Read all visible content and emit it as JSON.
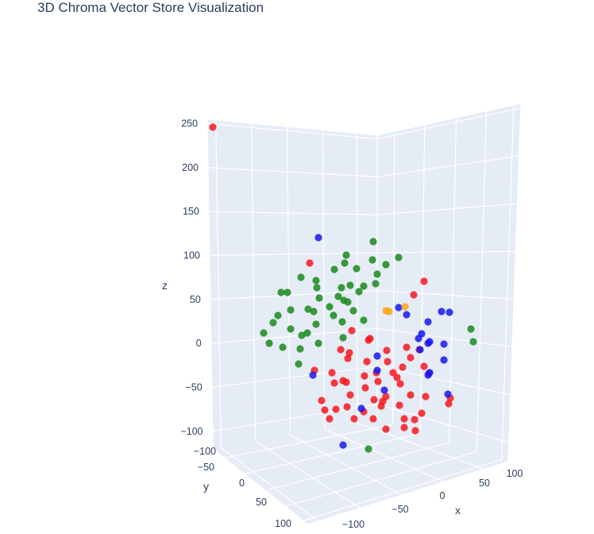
{
  "title": "3D Chroma Vector Store Visualization",
  "chart_data": {
    "type": "scatter",
    "title": "3D Chroma Vector Store Visualization",
    "axes": {
      "x": {
        "label": "x",
        "ticks": [
          "−100",
          "−50",
          "0",
          "50",
          "100"
        ]
      },
      "y": {
        "label": "y",
        "ticks": [
          "−100",
          "−50",
          "0",
          "50",
          "100"
        ]
      },
      "z": {
        "label": "z",
        "ticks": [
          "−100",
          "−50",
          "0",
          "50",
          "100",
          "150",
          "200",
          "250"
        ],
        "range": [
          -120,
          255
        ]
      }
    },
    "background": "#e5ecf6",
    "colors": {
      "red": "#f8171f",
      "green": "#1a8a1a",
      "blue": "#1818f0",
      "orange": "#ffa514"
    },
    "marker_opacity": 0.85,
    "series": [
      {
        "color": "red",
        "points": [
          [
            268,
            160
          ],
          [
            390,
            331
          ],
          [
            534,
            354
          ],
          [
            521,
            371
          ],
          [
            443,
            416
          ],
          [
            466,
            426
          ],
          [
            429,
            440
          ],
          [
            464,
            428
          ],
          [
            440,
            444
          ],
          [
            512,
            437
          ],
          [
            487,
            441
          ],
          [
            528,
            440
          ],
          [
            517,
            450
          ],
          [
            462,
            455
          ],
          [
            488,
            455
          ],
          [
            438,
            451
          ],
          [
            507,
            462
          ],
          [
            534,
            461
          ],
          [
            396,
            466
          ],
          [
            418,
            469
          ],
          [
            474,
            469
          ],
          [
            495,
            469
          ],
          [
            500,
            475
          ],
          [
            459,
            473
          ],
          [
            432,
            479
          ],
          [
            436,
            481
          ],
          [
            421,
            482
          ],
          [
            476,
            480
          ],
          [
            540,
            470
          ],
          [
            460,
            488
          ],
          [
            504,
            483
          ],
          [
            517,
            497
          ],
          [
            536,
            499
          ],
          [
            567,
            501
          ],
          [
            405,
            504
          ],
          [
            441,
            497
          ],
          [
            486,
            499
          ],
          [
            471,
            503
          ],
          [
            482,
            505
          ],
          [
            565,
            508
          ],
          [
            480,
            511
          ],
          [
            437,
            512
          ],
          [
            503,
            510
          ],
          [
            409,
            516
          ],
          [
            423,
            515
          ],
          [
            458,
            518
          ],
          [
            531,
            520
          ],
          [
            415,
            527
          ],
          [
            446,
            527
          ],
          [
            470,
            527
          ],
          [
            509,
            527
          ],
          [
            522,
            528
          ],
          [
            486,
            540
          ],
          [
            509,
            538
          ],
          [
            523,
            542
          ]
        ]
      },
      {
        "color": "green",
        "points": [
          [
            470,
            304
          ],
          [
            502,
            324
          ],
          [
            436,
            321
          ],
          [
            469,
            327
          ],
          [
            486,
            333
          ],
          [
            434,
            331
          ],
          [
            449,
            338
          ],
          [
            421,
            339
          ],
          [
            475,
            345
          ],
          [
            379,
            349
          ],
          [
            398,
            353
          ],
          [
            354,
            368
          ],
          [
            362,
            368
          ],
          [
            441,
            359
          ],
          [
            399,
            362
          ],
          [
            458,
            360
          ],
          [
            430,
            362
          ],
          [
            473,
            357
          ],
          [
            426,
            373
          ],
          [
            452,
            367
          ],
          [
            402,
            375
          ],
          [
            433,
            378
          ],
          [
            438,
            380
          ],
          [
            388,
            389
          ],
          [
            366,
            390
          ],
          [
            415,
            386
          ],
          [
            445,
            391
          ],
          [
            350,
            397
          ],
          [
            395,
            392
          ],
          [
            420,
            397
          ],
          [
            344,
            406
          ],
          [
            431,
            405
          ],
          [
            458,
            403
          ],
          [
            366,
            414
          ],
          [
            398,
            408
          ],
          [
            332,
            419
          ],
          [
            387,
            419
          ],
          [
            380,
            422
          ],
          [
            432,
            425
          ],
          [
            339,
            432
          ],
          [
            401,
            432
          ],
          [
            356,
            437
          ],
          [
            378,
            439
          ],
          [
            593,
            414
          ],
          [
            596,
            430
          ],
          [
            376,
            458
          ],
          [
            464,
            565
          ]
        ]
      },
      {
        "color": "blue",
        "points": [
          [
            401,
            299
          ],
          [
            502,
            387
          ],
          [
            512,
            396
          ],
          [
            556,
            392
          ],
          [
            566,
            393
          ],
          [
            539,
            405
          ],
          [
            531,
            420
          ],
          [
            527,
            426
          ],
          [
            539,
            432
          ],
          [
            541,
            430
          ],
          [
            559,
            433
          ],
          [
            529,
            440
          ],
          [
            475,
            448
          ],
          [
            559,
            453
          ],
          [
            475,
            466
          ],
          [
            541,
            469
          ],
          [
            539,
            472
          ],
          [
            394,
            472
          ],
          [
            484,
            491
          ],
          [
            564,
            496
          ],
          [
            455,
            514
          ],
          [
            432,
            560
          ]
        ]
      },
      {
        "color": "orange",
        "points": [
          [
            486,
            391
          ],
          [
            490,
            392
          ],
          [
            510,
            386
          ]
        ]
      }
    ]
  }
}
